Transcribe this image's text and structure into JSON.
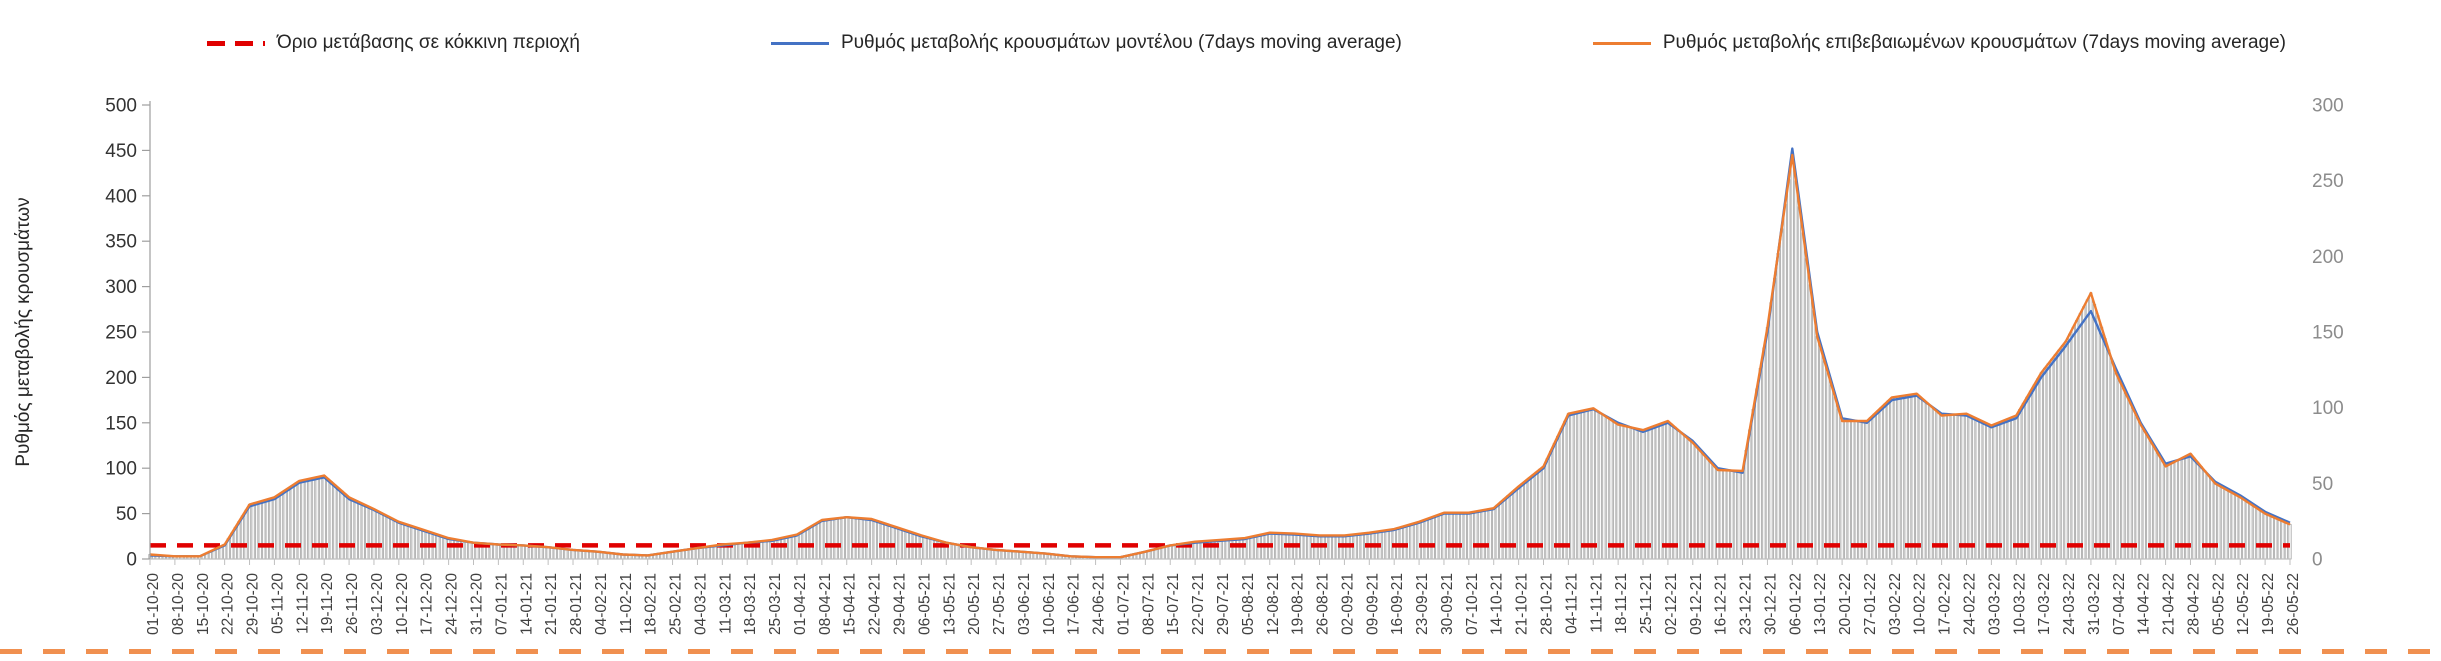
{
  "page": {
    "background": "#ffffff"
  },
  "legend": [
    {
      "label": "Όριο μετάβασης σε κόκκινη περιοχή",
      "color": "#e00000",
      "style": "dashed"
    },
    {
      "label": "Ρυθμός μεταβολής κρουσμάτων μοντέλου (7days moving average)",
      "color": "#4472c4",
      "style": "solid"
    },
    {
      "label": "Ρυθμός μεταβολής επιβεβαιωμένων κρουσμάτων (7days moving average)",
      "color": "#ed7d31",
      "style": "solid"
    }
  ],
  "chart_data": {
    "type": "line",
    "title": "",
    "ylabel": "Ρυθμός μεταβολής κρουσμάτων",
    "left_axis": {
      "min": 0,
      "max": 500,
      "step": 50
    },
    "right_axis": {
      "min": 0,
      "max": 300,
      "step": 50
    },
    "threshold": {
      "label": "Όριο μετάβασης σε κόκκινη περιοχή",
      "value": 15,
      "color": "#e00000"
    },
    "bars": {
      "fill": "#fafafa",
      "stroke": "#a6a6a6",
      "source": "confirmed series, daily"
    },
    "grid": false,
    "legend_position": "top",
    "categories": [
      "01-10-20",
      "08-10-20",
      "15-10-20",
      "22-10-20",
      "29-10-20",
      "05-11-20",
      "12-11-20",
      "19-11-20",
      "26-11-20",
      "03-12-20",
      "10-12-20",
      "17-12-20",
      "24-12-20",
      "31-12-20",
      "07-01-21",
      "14-01-21",
      "21-01-21",
      "28-01-21",
      "04-02-21",
      "11-02-21",
      "18-02-21",
      "25-02-21",
      "04-03-21",
      "11-03-21",
      "18-03-21",
      "25-03-21",
      "01-04-21",
      "08-04-21",
      "15-04-21",
      "22-04-21",
      "29-04-21",
      "06-05-21",
      "13-05-21",
      "20-05-21",
      "27-05-21",
      "03-06-21",
      "10-06-21",
      "17-06-21",
      "24-06-21",
      "01-07-21",
      "08-07-21",
      "15-07-21",
      "22-07-21",
      "29-07-21",
      "05-08-21",
      "12-08-21",
      "19-08-21",
      "26-08-21",
      "02-09-21",
      "09-09-21",
      "16-09-21",
      "23-09-21",
      "30-09-21",
      "07-10-21",
      "14-10-21",
      "21-10-21",
      "28-10-21",
      "04-11-21",
      "11-11-21",
      "18-11-21",
      "25-11-21",
      "02-12-21",
      "09-12-21",
      "16-12-21",
      "23-12-21",
      "30-12-21",
      "06-01-22",
      "13-01-22",
      "20-01-22",
      "27-01-22",
      "03-02-22",
      "10-02-22",
      "17-02-22",
      "24-02-22",
      "03-03-22",
      "10-03-22",
      "17-03-22",
      "24-03-22",
      "31-03-22",
      "07-04-22",
      "14-04-22",
      "21-04-22",
      "28-04-22",
      "05-05-22",
      "12-05-22",
      "19-05-22",
      "26-05-22"
    ],
    "series": [
      {
        "name": "Ρυθμός μεταβολής κρουσμάτων μοντέλου (7days moving average)",
        "color": "#4472c4",
        "axis": "left",
        "values": [
          4,
          3,
          3,
          15,
          58,
          66,
          84,
          90,
          66,
          54,
          40,
          31,
          22,
          18,
          16,
          15,
          13,
          10,
          8,
          5,
          4,
          8,
          12,
          15,
          18,
          20,
          26,
          42,
          46,
          43,
          34,
          25,
          18,
          13,
          10,
          8,
          6,
          3,
          2,
          2,
          8,
          15,
          18,
          20,
          22,
          28,
          27,
          25,
          25,
          28,
          32,
          40,
          50,
          50,
          55,
          78,
          100,
          158,
          165,
          150,
          140,
          150,
          130,
          100,
          95,
          250,
          452,
          250,
          155,
          150,
          175,
          180,
          160,
          158,
          145,
          155,
          200,
          235,
          273,
          210,
          150,
          105,
          113,
          85,
          70,
          52,
          40
        ]
      },
      {
        "name": "Ρυθμός μεταβολής επιβεβαιωμένων κρουσμάτων (7days moving average)",
        "color": "#ed7d31",
        "axis": "left",
        "values": [
          5,
          3,
          3,
          16,
          60,
          68,
          86,
          92,
          68,
          55,
          41,
          32,
          23,
          18,
          16,
          15,
          13,
          10,
          8,
          5,
          4,
          8,
          12,
          16,
          18,
          21,
          27,
          43,
          46,
          44,
          35,
          26,
          18,
          13,
          10,
          8,
          6,
          3,
          2,
          2,
          8,
          15,
          19,
          21,
          23,
          29,
          28,
          26,
          26,
          29,
          33,
          41,
          51,
          51,
          56,
          80,
          102,
          160,
          166,
          148,
          142,
          152,
          128,
          98,
          97,
          255,
          445,
          245,
          152,
          152,
          178,
          182,
          158,
          160,
          147,
          158,
          205,
          240,
          293,
          205,
          148,
          102,
          116,
          83,
          68,
          50,
          38
        ]
      }
    ]
  }
}
